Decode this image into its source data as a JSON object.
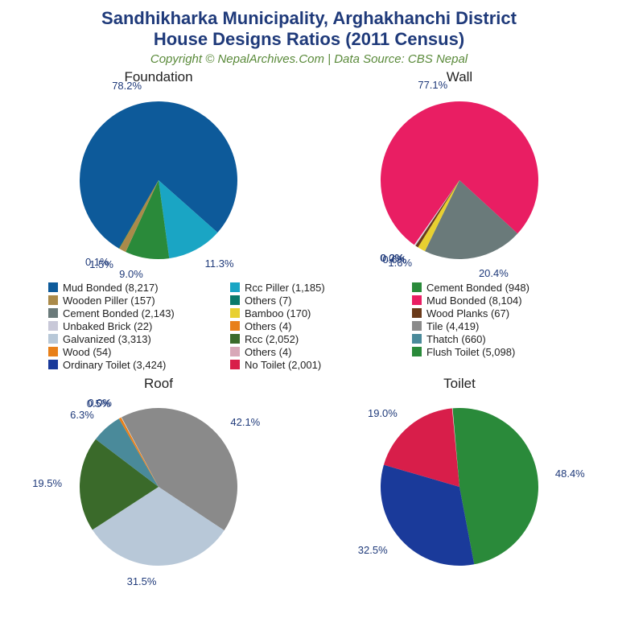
{
  "title_line1": "Sandhikharka Municipality, Arghakhanchi District",
  "title_line2": "House Designs Ratios (2011 Census)",
  "subtitle": "Copyright © NepalArchives.Com | Data Source: CBS Nepal",
  "title_color": "#1f3a7a",
  "subtitle_color": "#5a8a3a",
  "label_color": "#1f3a7a",
  "background_color": "#ffffff",
  "charts": [
    {
      "title": "Foundation",
      "slices": [
        {
          "label": "Mud Bonded",
          "count": 8217,
          "pct": 78.2,
          "color": "#0d5a9a"
        },
        {
          "label": "Rcc Piller",
          "count": 1185,
          "pct": 11.3,
          "color": "#1aa5c4"
        },
        {
          "label": "Cement Bonded",
          "count": 948,
          "pct": 9.0,
          "color": "#2a8a3a"
        },
        {
          "label": "Wooden Piller",
          "count": 157,
          "pct": 1.5,
          "color": "#aa8a4a"
        },
        {
          "label": "Others",
          "count": 7,
          "pct": 0.1,
          "color": "#0a7a6a"
        }
      ]
    },
    {
      "title": "Wall",
      "slices": [
        {
          "label": "Mud Bonded",
          "count": 8104,
          "pct": 77.1,
          "color": "#e91e63"
        },
        {
          "label": "Cement Bonded",
          "count": 2143,
          "pct": 20.4,
          "color": "#6a7a7a"
        },
        {
          "label": "Bamboo",
          "count": 170,
          "pct": 1.6,
          "color": "#e8d030"
        },
        {
          "label": "Wood Planks",
          "count": 67,
          "pct": 0.6,
          "color": "#6a3a1a"
        },
        {
          "label": "Unbaked Brick",
          "count": 22,
          "pct": 0.2,
          "color": "#c8c8d8"
        },
        {
          "label": "Others",
          "count": 4,
          "pct": 0.0,
          "color": "#e8801a"
        }
      ]
    },
    {
      "title": "Roof",
      "slices": [
        {
          "label": "Tile",
          "count": 4419,
          "pct": 42.1,
          "color": "#8a8a8a"
        },
        {
          "label": "Galvanized",
          "count": 3313,
          "pct": 31.5,
          "color": "#b8c8d8"
        },
        {
          "label": "Rcc",
          "count": 2052,
          "pct": 19.5,
          "color": "#3a6a2a"
        },
        {
          "label": "Thatch",
          "count": 660,
          "pct": 6.3,
          "color": "#4a8a9a"
        },
        {
          "label": "Wood",
          "count": 54,
          "pct": 0.5,
          "color": "#e8801a"
        },
        {
          "label": "Others",
          "count": 4,
          "pct": 0.0,
          "color": "#d8a8b8"
        }
      ]
    },
    {
      "title": "Toilet",
      "slices": [
        {
          "label": "Flush Toilet",
          "count": 5098,
          "pct": 48.4,
          "color": "#2a8a3a"
        },
        {
          "label": "Ordinary Toilet",
          "count": 3424,
          "pct": 32.5,
          "color": "#1a3a9a"
        },
        {
          "label": "No Toilet",
          "count": 2001,
          "pct": 19.0,
          "color": "#d81e4a"
        }
      ]
    }
  ],
  "legend": [
    {
      "label": "Mud Bonded (8,217)",
      "color": "#0d5a9a"
    },
    {
      "label": "Rcc Piller (1,185)",
      "color": "#1aa5c4"
    },
    {
      "label": "Cement Bonded (948)",
      "color": "#2a8a3a"
    },
    {
      "label": "Wooden Piller (157)",
      "color": "#aa8a4a"
    },
    {
      "label": "Others (7)",
      "color": "#0a7a6a"
    },
    {
      "label": "Mud Bonded (8,104)",
      "color": "#e91e63"
    },
    {
      "label": "Cement Bonded (2,143)",
      "color": "#6a7a7a"
    },
    {
      "label": "Bamboo (170)",
      "color": "#e8d030"
    },
    {
      "label": "Wood Planks (67)",
      "color": "#6a3a1a"
    },
    {
      "label": "Unbaked Brick (22)",
      "color": "#c8c8d8"
    },
    {
      "label": "Others (4)",
      "color": "#e8801a"
    },
    {
      "label": "Tile (4,419)",
      "color": "#8a8a8a"
    },
    {
      "label": "Galvanized (3,313)",
      "color": "#b8c8d8"
    },
    {
      "label": "Rcc (2,052)",
      "color": "#3a6a2a"
    },
    {
      "label": "Thatch (660)",
      "color": "#4a8a9a"
    },
    {
      "label": "Wood (54)",
      "color": "#e8801a"
    },
    {
      "label": "Others (4)",
      "color": "#d8a8b8"
    },
    {
      "label": "Flush Toilet (5,098)",
      "color": "#2a8a3a"
    },
    {
      "label": "Ordinary Toilet (3,424)",
      "color": "#1a3a9a"
    },
    {
      "label": "No Toilet (2,001)",
      "color": "#d81e4a"
    }
  ]
}
